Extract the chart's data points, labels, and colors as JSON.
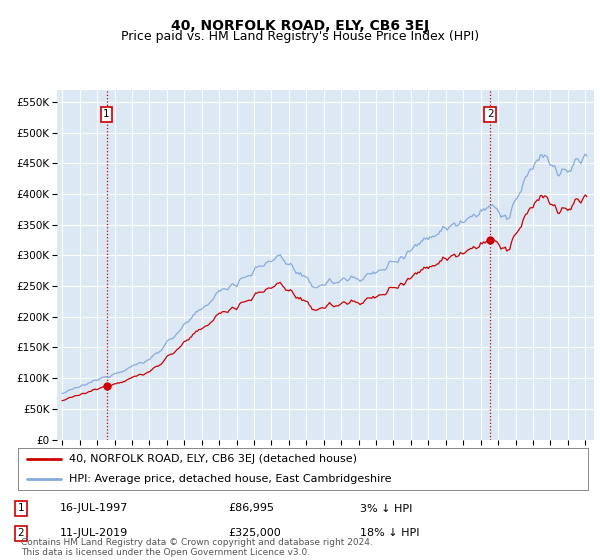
{
  "title": "40, NORFOLK ROAD, ELY, CB6 3EJ",
  "subtitle": "Price paid vs. HM Land Registry's House Price Index (HPI)",
  "ylim": [
    0,
    570000
  ],
  "yticks": [
    0,
    50000,
    100000,
    150000,
    200000,
    250000,
    300000,
    350000,
    400000,
    450000,
    500000,
    550000
  ],
  "xlim_start": 1994.7,
  "xlim_end": 2025.5,
  "background_color": "#dce9f5",
  "grid_color": "#b8cfe8",
  "sale1_date": 1997.54,
  "sale1_price": 86995,
  "sale2_date": 2019.54,
  "sale2_price": 325000,
  "sale1_date_str": "16-JUL-1997",
  "sale2_date_str": "11-JUL-2019",
  "sale1_hpi_pct": "3% ↓ HPI",
  "sale2_hpi_pct": "18% ↓ HPI",
  "line_color_red": "#cc0000",
  "line_color_blue": "#88aadd",
  "marker_color": "#cc0000",
  "legend1": "40, NORFOLK ROAD, ELY, CB6 3EJ (detached house)",
  "legend2": "HPI: Average price, detached house, East Cambridgeshire",
  "footer": "Contains HM Land Registry data © Crown copyright and database right 2024.\nThis data is licensed under the Open Government Licence v3.0.",
  "title_fontsize": 10,
  "subtitle_fontsize": 9,
  "tick_fontsize": 7.5,
  "legend_fontsize": 8,
  "footer_fontsize": 6.5
}
